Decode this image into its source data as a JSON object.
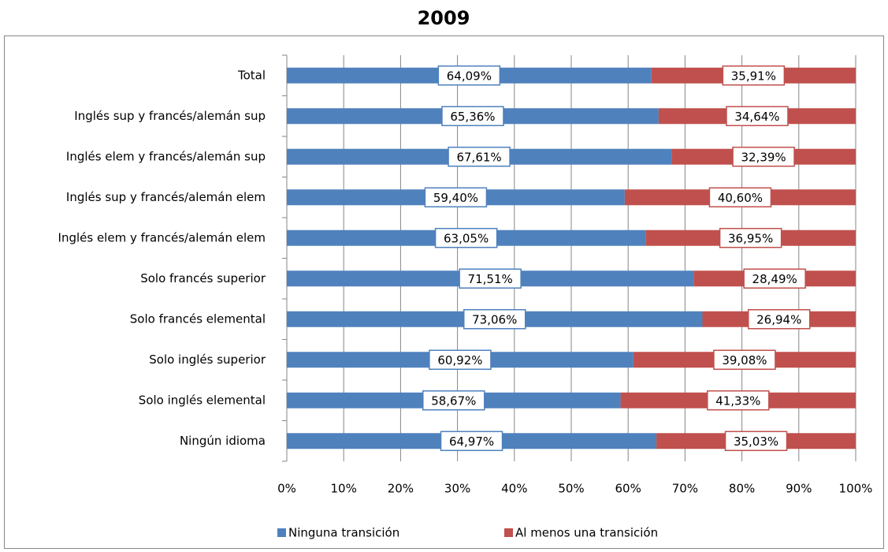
{
  "chart_data": {
    "type": "stacked_barh",
    "title": "2009",
    "categories": [
      "Total",
      "Inglés sup y francés/alemán sup",
      "Inglés elem y francés/alemán sup",
      "Inglés sup y francés/alemán elem",
      "Inglés elem y francés/alemán elem",
      "Solo francés superior",
      "Solo francés elemental",
      "Solo inglés superior",
      "Solo inglés elemental",
      "Ningún idioma"
    ],
    "series": [
      {
        "name": "Ninguna transición",
        "color": "#4f81bd",
        "values": [
          64.09,
          65.36,
          67.61,
          59.4,
          63.05,
          71.51,
          73.06,
          60.92,
          58.67,
          64.97
        ],
        "value_labels": [
          "64,09%",
          "65,36%",
          "67,61%",
          "59,40%",
          "63,05%",
          "71,51%",
          "73,06%",
          "60,92%",
          "58,67%",
          "64,97%"
        ]
      },
      {
        "name": "Al menos una transición",
        "color": "#c0504d",
        "values": [
          35.91,
          34.64,
          32.39,
          40.6,
          36.95,
          28.49,
          26.94,
          39.08,
          41.33,
          35.03
        ],
        "value_labels": [
          "35,91%",
          "34,64%",
          "32,39%",
          "40,60%",
          "36,95%",
          "28,49%",
          "26,94%",
          "39,08%",
          "41,33%",
          "35,03%"
        ]
      }
    ],
    "xlim": [
      0,
      100
    ],
    "xticks": [
      {
        "value": 0,
        "label": "0%"
      },
      {
        "value": 10,
        "label": "10%"
      },
      {
        "value": 20,
        "label": "20%"
      },
      {
        "value": 30,
        "label": "30%"
      },
      {
        "value": 40,
        "label": "40%"
      },
      {
        "value": 50,
        "label": "50%"
      },
      {
        "value": 60,
        "label": "60%"
      },
      {
        "value": 70,
        "label": "70%"
      },
      {
        "value": 80,
        "label": "80%"
      },
      {
        "value": 90,
        "label": "90%"
      },
      {
        "value": 100,
        "label": "100%"
      }
    ],
    "grid": true,
    "legend": "bottom"
  }
}
